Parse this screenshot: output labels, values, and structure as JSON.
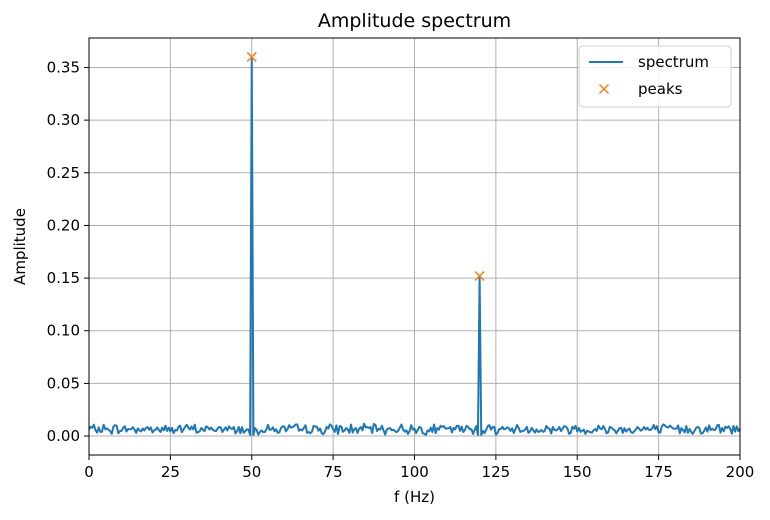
{
  "chart_data": {
    "type": "line",
    "title": "Amplitude spectrum",
    "xlabel": "f (Hz)",
    "ylabel": "Amplitude",
    "xlim": [
      0,
      200
    ],
    "ylim": [
      -0.018,
      0.378
    ],
    "x_ticks": [
      0,
      25,
      50,
      75,
      100,
      125,
      150,
      175,
      200
    ],
    "y_ticks": [
      0.0,
      0.05,
      0.1,
      0.15,
      0.2,
      0.25,
      0.3,
      0.35
    ],
    "x_tick_labels": [
      "0",
      "25",
      "50",
      "75",
      "100",
      "125",
      "150",
      "175",
      "200"
    ],
    "y_tick_labels": [
      "0.00",
      "0.05",
      "0.10",
      "0.15",
      "0.20",
      "0.25",
      "0.30",
      "0.35"
    ],
    "grid": true,
    "legend": {
      "placement": "top-right",
      "entries": [
        "spectrum",
        "peaks"
      ]
    },
    "colors": {
      "spectrum": "#1f77b4",
      "peaks": "#ff7f0e"
    },
    "series": [
      {
        "name": "spectrum",
        "style": "line",
        "baseline": {
          "x_start": 0,
          "x_end": 200,
          "step": 0.5,
          "noise_mean": 0.006,
          "noise_min": 0.0,
          "noise_max": 0.014
        },
        "peaks": [
          {
            "x": 50,
            "y": 0.36
          },
          {
            "x": 120,
            "y": 0.152
          }
        ]
      },
      {
        "name": "peaks",
        "style": "marker-x",
        "x": [
          50,
          120
        ],
        "y": [
          0.36,
          0.152
        ]
      }
    ]
  }
}
